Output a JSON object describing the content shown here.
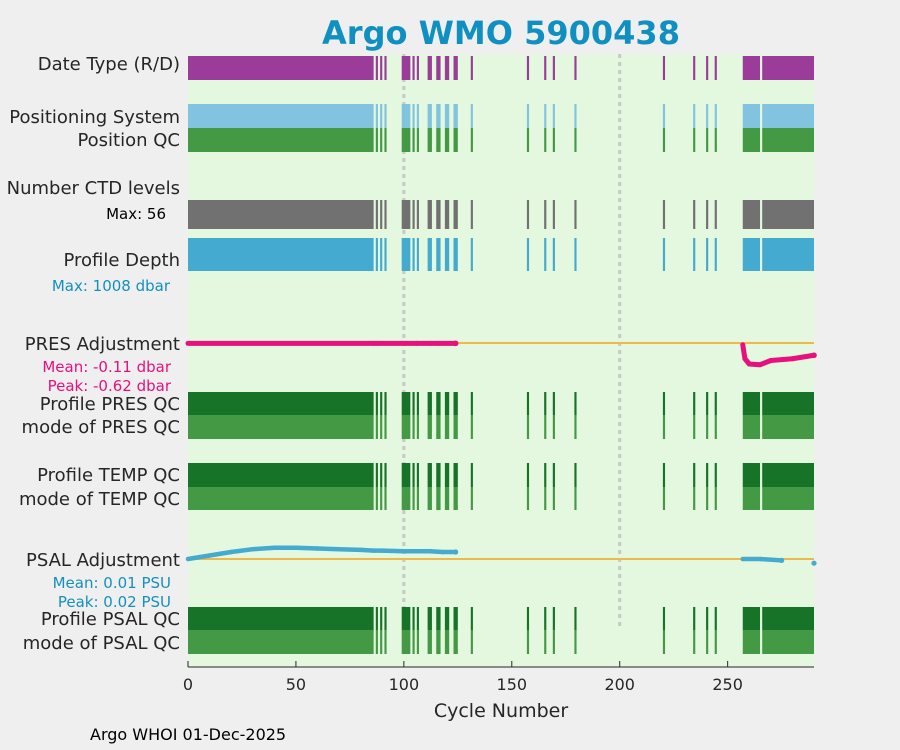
{
  "title": "Argo WMO 5900438",
  "footer": "Argo WHOI 01-Dec-2025",
  "colors": {
    "title": "#1090c0",
    "plot_bg": "#e3f8de",
    "date_type": "#9b3c9b",
    "positioning": "#82c4e0",
    "qc_light": "#449a44",
    "qc_dark": "#177327",
    "ctd": "#717171",
    "depth": "#44aad0",
    "pres_adj": "#e8107c",
    "psal_adj": "#44aad0",
    "zero_line": "#f0b84a",
    "ref_line": "#c8c8c8",
    "pres_stat": "#e8107c",
    "psal_stat": "#1490c0"
  },
  "rows": {
    "date_type": "Date Type (R/D)",
    "positioning": "Positioning System",
    "position_qc": "Position QC",
    "ctd_levels": "Number CTD levels",
    "profile_depth": "Profile Depth",
    "pres_adjustment": "PRES Adjustment",
    "profile_pres_qc": "Profile PRES QC",
    "mode_pres_qc": "mode of PRES QC",
    "profile_temp_qc": "Profile TEMP QC",
    "mode_temp_qc": "mode of TEMP QC",
    "psal_adjustment": "PSAL Adjustment",
    "profile_psal_qc": "Profile PSAL QC",
    "mode_psal_qc": "mode of PSAL QC"
  },
  "stats": {
    "ctd_max": "Max: 56",
    "depth_max": "Max: 1008 dbar",
    "pres_mean": "Mean: -0.11 dbar",
    "pres_peak": "Peak: -0.62 dbar",
    "psal_mean": "Mean: 0.01 PSU",
    "psal_peak": "Peak: 0.02 PSU"
  },
  "chart_data": {
    "type": "timeline",
    "title": "Argo WMO 5900438",
    "xlabel": "Cycle Number",
    "xlim": [
      0,
      290
    ],
    "xticks": [
      0,
      50,
      100,
      150,
      200,
      250
    ],
    "reference_cycles": [
      100,
      200
    ],
    "segments": [
      [
        0,
        86
      ],
      [
        87,
        88
      ],
      [
        89,
        90
      ],
      [
        91,
        92
      ],
      [
        99,
        103
      ],
      [
        104,
        105
      ],
      [
        106,
        107
      ],
      [
        111,
        113
      ],
      [
        115,
        117
      ],
      [
        119,
        121
      ],
      [
        123,
        125
      ],
      [
        131,
        132
      ],
      [
        157,
        158
      ],
      [
        165,
        166
      ],
      [
        169,
        170
      ],
      [
        179,
        180
      ],
      [
        220,
        221
      ],
      [
        234,
        235
      ],
      [
        240,
        241
      ],
      [
        244,
        245
      ],
      [
        257,
        265
      ],
      [
        266,
        290
      ]
    ],
    "pres_adjustment_dbar": [
      [
        0,
        -0.01
      ],
      [
        86,
        -0.01
      ],
      [
        88,
        -0.01
      ],
      [
        100,
        -0.01
      ],
      [
        106,
        -0.01
      ],
      [
        112,
        -0.01
      ],
      [
        116,
        -0.01
      ],
      [
        124,
        -0.01
      ],
      [
        257,
        -0.05
      ],
      [
        258,
        -0.45
      ],
      [
        260,
        -0.6
      ],
      [
        265,
        -0.62
      ],
      [
        270,
        -0.5
      ],
      [
        280,
        -0.45
      ],
      [
        290,
        -0.35
      ]
    ],
    "psal_adjustment_psu": [
      [
        0,
        0.0
      ],
      [
        10,
        0.005
      ],
      [
        20,
        0.01
      ],
      [
        30,
        0.014
      ],
      [
        40,
        0.016
      ],
      [
        50,
        0.016
      ],
      [
        60,
        0.015
      ],
      [
        70,
        0.014
      ],
      [
        80,
        0.013
      ],
      [
        86,
        0.012
      ],
      [
        90,
        0.012
      ],
      [
        100,
        0.011
      ],
      [
        106,
        0.011
      ],
      [
        112,
        0.011
      ],
      [
        118,
        0.01
      ],
      [
        124,
        0.01
      ],
      [
        257,
        0.0
      ],
      [
        265,
        0.0
      ],
      [
        275,
        -0.002
      ],
      [
        290,
        -0.006
      ]
    ]
  }
}
